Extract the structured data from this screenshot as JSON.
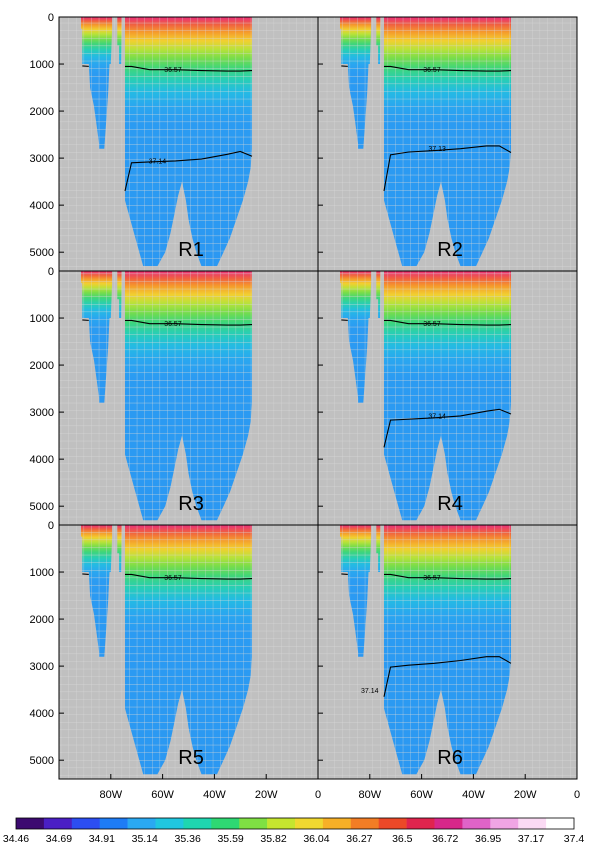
{
  "chart_data": {
    "type": "heatmap",
    "title": "",
    "xlabel": "",
    "ylabel": "",
    "x_tick_labels": [
      "80W",
      "60W",
      "40W",
      "20W",
      "0"
    ],
    "y_tick_labels": [
      "0",
      "1000",
      "2000",
      "3000",
      "4000",
      "5000"
    ],
    "ylim": [
      5400,
      0
    ],
    "grid": true,
    "colorbar_labels": [
      "34.46",
      "34.69",
      "34.91",
      "35.14",
      "35.36",
      "35.59",
      "35.82",
      "36.04",
      "36.27",
      "36.5",
      "36.72",
      "36.95",
      "37.17",
      "37.4"
    ],
    "colorbar_colors": [
      "#3c0a70",
      "#4a1fc4",
      "#2c4ef2",
      "#1e7cf5",
      "#2aa9f2",
      "#20c7e0",
      "#1fd6b0",
      "#2ed873",
      "#7fe043",
      "#c5e52f",
      "#f0d830",
      "#f7b027",
      "#f27d25",
      "#ec4928",
      "#e0244e",
      "#d7278a",
      "#e063c8",
      "#f0a5e4",
      "#fbdaf4",
      "#ffffff"
    ],
    "panels": [
      {
        "label": "R1",
        "contours": [
          {
            "label": "36.57",
            "depths": [
              1050,
              1050,
              1120,
              1120,
              1140,
              1150,
              1150,
              1140
            ]
          },
          {
            "label": "37.14",
            "depths": [
              3700,
              3100,
              3080,
              3060,
              3020,
              2920,
              2860,
              2960
            ],
            "label_x": 0.38
          }
        ]
      },
      {
        "label": "R2",
        "contours": [
          {
            "label": "36.57",
            "depths": [
              1050,
              1050,
              1120,
              1120,
              1140,
              1150,
              1150,
              1140
            ]
          },
          {
            "label": "37.13",
            "depths": [
              3700,
              2930,
              2870,
              2840,
              2800,
              2740,
              2740,
              2880
            ],
            "label_x": 0.46
          }
        ]
      },
      {
        "label": "R3",
        "contours": [
          {
            "label": "36.57",
            "depths": [
              1050,
              1050,
              1120,
              1120,
              1140,
              1150,
              1150,
              1140
            ]
          }
        ]
      },
      {
        "label": "R4",
        "contours": [
          {
            "label": "36.57",
            "depths": [
              1050,
              1050,
              1120,
              1120,
              1140,
              1150,
              1150,
              1140
            ]
          },
          {
            "label": "37.14",
            "depths": [
              3750,
              3170,
              3150,
              3120,
              3080,
              2980,
              2940,
              3040
            ],
            "label_x": 0.46
          }
        ]
      },
      {
        "label": "R5",
        "contours": [
          {
            "label": "36.57",
            "depths": [
              1050,
              1050,
              1120,
              1120,
              1140,
              1150,
              1150,
              1140
            ]
          }
        ]
      },
      {
        "label": "R6",
        "contours": [
          {
            "label": "36.57",
            "depths": [
              1050,
              1050,
              1120,
              1120,
              1140,
              1150,
              1150,
              1140
            ]
          },
          {
            "label": "37.14",
            "depths": [
              3650,
              3020,
              2980,
              2940,
              2880,
              2800,
              2800,
              2940
            ],
            "label_x": 0.2
          }
        ]
      }
    ]
  }
}
